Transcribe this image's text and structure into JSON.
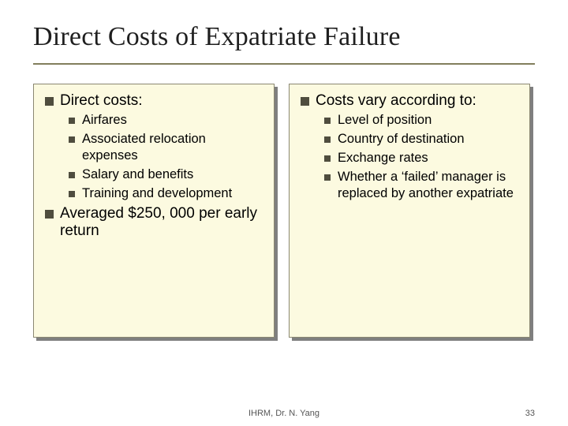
{
  "title": "Direct Costs of Expatriate Failure",
  "left": {
    "h1": "Direct costs:",
    "items": [
      "Airfares",
      "Associated relocation expenses",
      "Salary and benefits",
      "Training and development"
    ],
    "h2": "Averaged $250, 000 per early return"
  },
  "right": {
    "h1": "Costs vary according to:",
    "items": [
      "Level of position",
      "Country of destination",
      "Exchange rates",
      "Whether a ‘failed’ manager is replaced by another expatriate"
    ]
  },
  "footer": {
    "center": "IHRM, Dr. N. Yang",
    "page": "33"
  },
  "colors": {
    "panel_bg": "#fcfae0",
    "panel_border": "#8b8872",
    "shadow": "#7f7f7f",
    "rule": "#827e5c",
    "bullet": "#4f4d3e"
  }
}
